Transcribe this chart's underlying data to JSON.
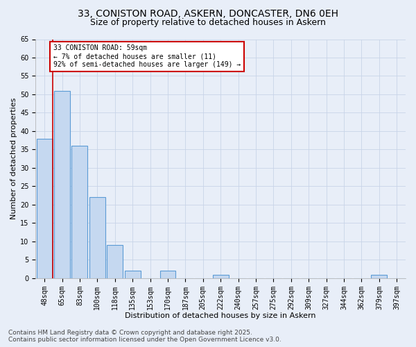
{
  "title_line1": "33, CONISTON ROAD, ASKERN, DONCASTER, DN6 0EH",
  "title_line2": "Size of property relative to detached houses in Askern",
  "xlabel": "Distribution of detached houses by size in Askern",
  "ylabel": "Number of detached properties",
  "categories": [
    "48sqm",
    "65sqm",
    "83sqm",
    "100sqm",
    "118sqm",
    "135sqm",
    "153sqm",
    "170sqm",
    "187sqm",
    "205sqm",
    "222sqm",
    "240sqm",
    "257sqm",
    "275sqm",
    "292sqm",
    "309sqm",
    "327sqm",
    "344sqm",
    "362sqm",
    "379sqm",
    "397sqm"
  ],
  "values": [
    38,
    51,
    36,
    22,
    9,
    2,
    0,
    2,
    0,
    0,
    1,
    0,
    0,
    0,
    0,
    0,
    0,
    0,
    0,
    1,
    0
  ],
  "bar_color": "#c5d8f0",
  "bar_edge_color": "#5b9bd5",
  "grid_color": "#c8d4e8",
  "background_color": "#e8eef8",
  "subject_line_color": "#cc0000",
  "annotation_text": "33 CONISTON ROAD: 59sqm\n← 7% of detached houses are smaller (11)\n92% of semi-detached houses are larger (149) →",
  "annotation_box_color": "#ffffff",
  "annotation_box_edge": "#cc0000",
  "ylim": [
    0,
    65
  ],
  "yticks": [
    0,
    5,
    10,
    15,
    20,
    25,
    30,
    35,
    40,
    45,
    50,
    55,
    60,
    65
  ],
  "title_fontsize": 10,
  "subtitle_fontsize": 9,
  "axis_label_fontsize": 8,
  "tick_fontsize": 7,
  "annotation_fontsize": 7,
  "footer_fontsize": 6.5,
  "footer_line1": "Contains HM Land Registry data © Crown copyright and database right 2025.",
  "footer_line2": "Contains public sector information licensed under the Open Government Licence v3.0."
}
